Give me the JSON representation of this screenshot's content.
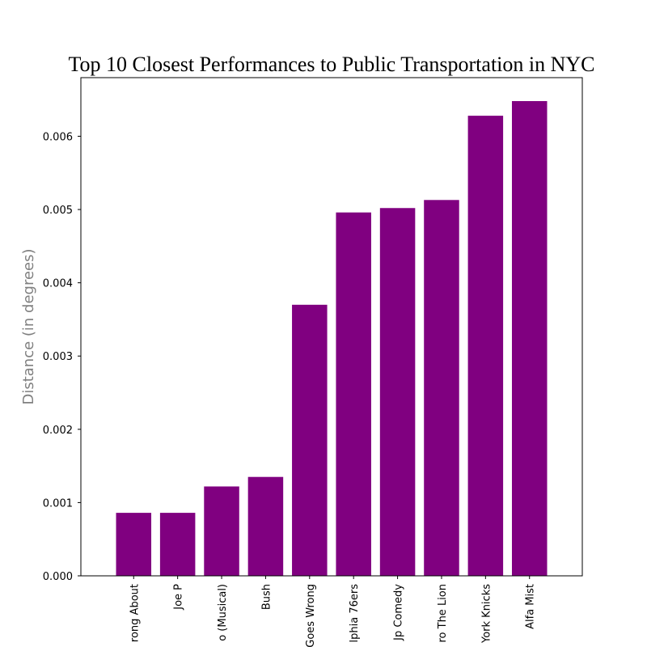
{
  "chart_data": {
    "type": "bar",
    "title": "Top 10 Closest Performances to Public Transportation in NYC",
    "xlabel": "",
    "ylabel": "Distance (in degrees)",
    "categories": [
      "rong About",
      "Joe P",
      "o (Musical)",
      "Bush",
      "Goes Wrong",
      "lphia 76ers",
      "Jp Comedy",
      "ro The Lion",
      "York Knicks",
      "Alfa Mist"
    ],
    "values": [
      0.00086,
      0.00086,
      0.00122,
      0.00135,
      0.0037,
      0.00496,
      0.00502,
      0.00513,
      0.00628,
      0.00648
    ],
    "ylim": [
      0,
      0.0068
    ],
    "yticks": [
      "0.000",
      "0.001",
      "0.002",
      "0.003",
      "0.004",
      "0.005",
      "0.006"
    ],
    "bar_color": "#800080",
    "grid": false,
    "legend": "none"
  }
}
